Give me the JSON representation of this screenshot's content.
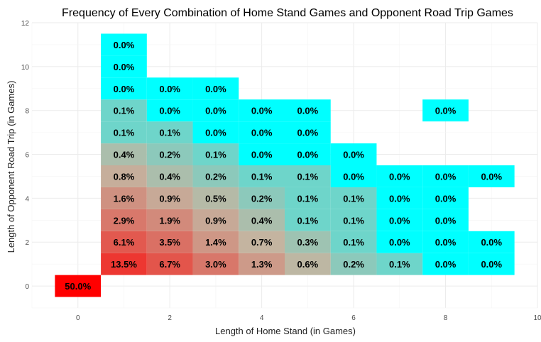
{
  "chart_data": {
    "type": "heatmap",
    "title": "Frequency of Every Combination of Home Stand Games and Opponent Road Trip Games",
    "xlabel": "Length of Home Stand (in Games)",
    "ylabel": "Length of Opponent Road Trip (in Games)",
    "xlim": [
      -1,
      10
    ],
    "ylim": [
      -1,
      12
    ],
    "x_ticks": [
      0,
      2,
      4,
      6,
      8,
      10
    ],
    "y_ticks": [
      0,
      2,
      4,
      6,
      8,
      10,
      12
    ],
    "grid": true,
    "color_scale": {
      "low": "#00ffff",
      "high": "#ff0000"
    },
    "cells": [
      {
        "x": 0,
        "y": 0,
        "value": 50.0,
        "label": "50.0%"
      },
      {
        "x": 1,
        "y": 1,
        "value": 13.5,
        "label": "13.5%"
      },
      {
        "x": 2,
        "y": 1,
        "value": 6.7,
        "label": "6.7%"
      },
      {
        "x": 3,
        "y": 1,
        "value": 3.0,
        "label": "3.0%"
      },
      {
        "x": 4,
        "y": 1,
        "value": 1.3,
        "label": "1.3%"
      },
      {
        "x": 5,
        "y": 1,
        "value": 0.6,
        "label": "0.6%"
      },
      {
        "x": 6,
        "y": 1,
        "value": 0.2,
        "label": "0.2%"
      },
      {
        "x": 7,
        "y": 1,
        "value": 0.1,
        "label": "0.1%"
      },
      {
        "x": 8,
        "y": 1,
        "value": 0.0,
        "label": "0.0%"
      },
      {
        "x": 9,
        "y": 1,
        "value": 0.0,
        "label": "0.0%"
      },
      {
        "x": 1,
        "y": 2,
        "value": 6.1,
        "label": "6.1%"
      },
      {
        "x": 2,
        "y": 2,
        "value": 3.5,
        "label": "3.5%"
      },
      {
        "x": 3,
        "y": 2,
        "value": 1.4,
        "label": "1.4%"
      },
      {
        "x": 4,
        "y": 2,
        "value": 0.7,
        "label": "0.7%"
      },
      {
        "x": 5,
        "y": 2,
        "value": 0.3,
        "label": "0.3%"
      },
      {
        "x": 6,
        "y": 2,
        "value": 0.1,
        "label": "0.1%"
      },
      {
        "x": 7,
        "y": 2,
        "value": 0.0,
        "label": "0.0%"
      },
      {
        "x": 8,
        "y": 2,
        "value": 0.0,
        "label": "0.0%"
      },
      {
        "x": 9,
        "y": 2,
        "value": 0.0,
        "label": "0.0%"
      },
      {
        "x": 1,
        "y": 3,
        "value": 2.9,
        "label": "2.9%"
      },
      {
        "x": 2,
        "y": 3,
        "value": 1.9,
        "label": "1.9%"
      },
      {
        "x": 3,
        "y": 3,
        "value": 0.9,
        "label": "0.9%"
      },
      {
        "x": 4,
        "y": 3,
        "value": 0.4,
        "label": "0.4%"
      },
      {
        "x": 5,
        "y": 3,
        "value": 0.1,
        "label": "0.1%"
      },
      {
        "x": 6,
        "y": 3,
        "value": 0.1,
        "label": "0.1%"
      },
      {
        "x": 7,
        "y": 3,
        "value": 0.0,
        "label": "0.0%"
      },
      {
        "x": 8,
        "y": 3,
        "value": 0.0,
        "label": "0.0%"
      },
      {
        "x": 1,
        "y": 4,
        "value": 1.6,
        "label": "1.6%"
      },
      {
        "x": 2,
        "y": 4,
        "value": 0.9,
        "label": "0.9%"
      },
      {
        "x": 3,
        "y": 4,
        "value": 0.5,
        "label": "0.5%"
      },
      {
        "x": 4,
        "y": 4,
        "value": 0.2,
        "label": "0.2%"
      },
      {
        "x": 5,
        "y": 4,
        "value": 0.1,
        "label": "0.1%"
      },
      {
        "x": 6,
        "y": 4,
        "value": 0.1,
        "label": "0.1%"
      },
      {
        "x": 7,
        "y": 4,
        "value": 0.0,
        "label": "0.0%"
      },
      {
        "x": 8,
        "y": 4,
        "value": 0.0,
        "label": "0.0%"
      },
      {
        "x": 1,
        "y": 5,
        "value": 0.8,
        "label": "0.8%"
      },
      {
        "x": 2,
        "y": 5,
        "value": 0.4,
        "label": "0.4%"
      },
      {
        "x": 3,
        "y": 5,
        "value": 0.2,
        "label": "0.2%"
      },
      {
        "x": 4,
        "y": 5,
        "value": 0.1,
        "label": "0.1%"
      },
      {
        "x": 5,
        "y": 5,
        "value": 0.1,
        "label": "0.1%"
      },
      {
        "x": 6,
        "y": 5,
        "value": 0.0,
        "label": "0.0%"
      },
      {
        "x": 7,
        "y": 5,
        "value": 0.0,
        "label": "0.0%"
      },
      {
        "x": 8,
        "y": 5,
        "value": 0.0,
        "label": "0.0%"
      },
      {
        "x": 9,
        "y": 5,
        "value": 0.0,
        "label": "0.0%"
      },
      {
        "x": 1,
        "y": 6,
        "value": 0.4,
        "label": "0.4%"
      },
      {
        "x": 2,
        "y": 6,
        "value": 0.2,
        "label": "0.2%"
      },
      {
        "x": 3,
        "y": 6,
        "value": 0.1,
        "label": "0.1%"
      },
      {
        "x": 4,
        "y": 6,
        "value": 0.0,
        "label": "0.0%"
      },
      {
        "x": 5,
        "y": 6,
        "value": 0.0,
        "label": "0.0%"
      },
      {
        "x": 6,
        "y": 6,
        "value": 0.0,
        "label": "0.0%"
      },
      {
        "x": 1,
        "y": 7,
        "value": 0.1,
        "label": "0.1%"
      },
      {
        "x": 2,
        "y": 7,
        "value": 0.1,
        "label": "0.1%"
      },
      {
        "x": 3,
        "y": 7,
        "value": 0.0,
        "label": "0.0%"
      },
      {
        "x": 4,
        "y": 7,
        "value": 0.0,
        "label": "0.0%"
      },
      {
        "x": 5,
        "y": 7,
        "value": 0.0,
        "label": "0.0%"
      },
      {
        "x": 1,
        "y": 8,
        "value": 0.1,
        "label": "0.1%"
      },
      {
        "x": 2,
        "y": 8,
        "value": 0.0,
        "label": "0.0%"
      },
      {
        "x": 3,
        "y": 8,
        "value": 0.0,
        "label": "0.0%"
      },
      {
        "x": 4,
        "y": 8,
        "value": 0.0,
        "label": "0.0%"
      },
      {
        "x": 5,
        "y": 8,
        "value": 0.0,
        "label": "0.0%"
      },
      {
        "x": 8,
        "y": 8,
        "value": 0.0,
        "label": "0.0%"
      },
      {
        "x": 1,
        "y": 9,
        "value": 0.0,
        "label": "0.0%"
      },
      {
        "x": 2,
        "y": 9,
        "value": 0.0,
        "label": "0.0%"
      },
      {
        "x": 3,
        "y": 9,
        "value": 0.0,
        "label": "0.0%"
      },
      {
        "x": 1,
        "y": 10,
        "value": 0.0,
        "label": "0.0%"
      },
      {
        "x": 1,
        "y": 11,
        "value": 0.0,
        "label": "0.0%"
      }
    ]
  }
}
